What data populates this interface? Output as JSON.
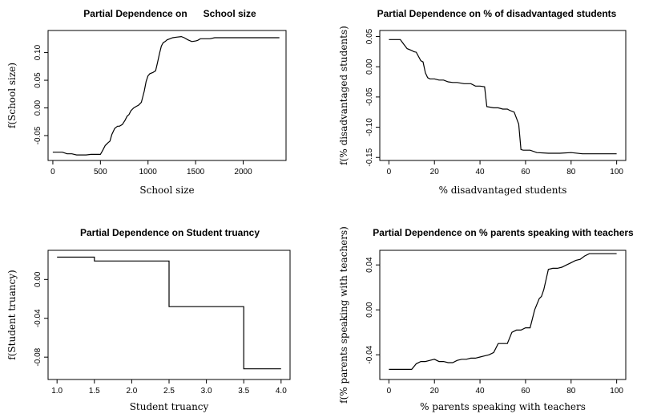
{
  "chart_data": [
    {
      "type": "line",
      "title": "Partial Dependence on      School size",
      "xlabel": "School size",
      "ylabel": "f(School size)",
      "xlim": [
        -50,
        2450
      ],
      "ylim": [
        -0.095,
        0.14
      ],
      "xticks": [
        0,
        500,
        1000,
        1500,
        2000
      ],
      "xtick_labels": [
        "0",
        "500",
        "1000",
        "1500",
        "2000"
      ],
      "yticks": [
        -0.05,
        0.0,
        0.05,
        0.1
      ],
      "ytick_labels": [
        "-0.05",
        "0.00",
        "0.05",
        "0.10"
      ],
      "x": [
        0,
        100,
        150,
        200,
        250,
        300,
        350,
        400,
        450,
        500,
        520,
        550,
        580,
        600,
        620,
        650,
        680,
        700,
        730,
        760,
        780,
        800,
        820,
        850,
        880,
        900,
        930,
        960,
        980,
        1000,
        1020,
        1050,
        1080,
        1100,
        1120,
        1140,
        1160,
        1180,
        1200,
        1230,
        1260,
        1300,
        1350,
        1380,
        1420,
        1460,
        1500,
        1520,
        1550,
        1600,
        1650,
        1700,
        1800,
        2000,
        2200,
        2380
      ],
      "y": [
        -0.08,
        -0.08,
        -0.083,
        -0.083,
        -0.085,
        -0.085,
        -0.085,
        -0.084,
        -0.084,
        -0.084,
        -0.078,
        -0.068,
        -0.063,
        -0.06,
        -0.048,
        -0.037,
        -0.033,
        -0.033,
        -0.03,
        -0.022,
        -0.015,
        -0.012,
        -0.005,
        0.0,
        0.003,
        0.005,
        0.01,
        0.03,
        0.048,
        0.058,
        0.062,
        0.064,
        0.067,
        0.082,
        0.098,
        0.112,
        0.118,
        0.12,
        0.123,
        0.125,
        0.127,
        0.128,
        0.129,
        0.127,
        0.123,
        0.12,
        0.121,
        0.122,
        0.125,
        0.125,
        0.125,
        0.127,
        0.127,
        0.127,
        0.127,
        0.127
      ]
    },
    {
      "type": "line",
      "title": "Partial Dependence on % of disadvantaged students",
      "xlabel": "% disadvantaged students",
      "ylabel": "f(% disadvantaged students)",
      "xlim": [
        -4,
        104
      ],
      "ylim": [
        -0.155,
        0.06
      ],
      "xticks": [
        0,
        20,
        40,
        60,
        80,
        100
      ],
      "xtick_labels": [
        "0",
        "20",
        "40",
        "60",
        "80",
        "100"
      ],
      "yticks": [
        -0.15,
        -0.1,
        -0.05,
        0.0,
        0.05
      ],
      "ytick_labels": [
        "-0.15",
        "-0.10",
        "-0.05",
        "0.00",
        "0.05"
      ],
      "x": [
        0,
        5,
        6,
        8,
        10,
        11,
        12,
        14,
        15,
        16,
        17,
        18,
        20,
        22,
        24,
        26,
        28,
        30,
        33,
        36,
        38,
        40,
        42,
        43,
        46,
        48,
        50,
        52,
        53,
        55,
        56,
        57,
        58,
        59,
        62,
        65,
        70,
        75,
        80,
        85,
        90,
        100
      ],
      "y": [
        0.045,
        0.045,
        0.04,
        0.03,
        0.027,
        0.025,
        0.024,
        0.01,
        0.008,
        -0.01,
        -0.018,
        -0.02,
        -0.02,
        -0.022,
        -0.022,
        -0.025,
        -0.026,
        -0.026,
        -0.028,
        -0.028,
        -0.032,
        -0.032,
        -0.033,
        -0.066,
        -0.068,
        -0.068,
        -0.07,
        -0.07,
        -0.072,
        -0.075,
        -0.085,
        -0.095,
        -0.137,
        -0.138,
        -0.138,
        -0.142,
        -0.143,
        -0.143,
        -0.142,
        -0.144,
        -0.144,
        -0.144
      ]
    },
    {
      "type": "line",
      "title": "Partial Dependence on Student truancy",
      "xlabel": "Student truancy",
      "ylabel": "f(Student truancy)",
      "xlim": [
        0.88,
        4.12
      ],
      "ylim": [
        -0.103,
        0.03
      ],
      "xticks": [
        1.0,
        1.5,
        2.0,
        2.5,
        3.0,
        3.5,
        4.0
      ],
      "xtick_labels": [
        "1.0",
        "1.5",
        "2.0",
        "2.5",
        "3.0",
        "3.5",
        "4.0"
      ],
      "yticks": [
        -0.08,
        -0.04,
        0.0
      ],
      "ytick_labels": [
        "-0.08",
        "-0.04",
        "0.00"
      ],
      "x": [
        1.0,
        1.5,
        1.5,
        2.5,
        2.5,
        3.5,
        3.5,
        4.0
      ],
      "y": [
        0.023,
        0.023,
        0.019,
        0.019,
        -0.028,
        -0.028,
        -0.092,
        -0.092
      ]
    },
    {
      "type": "line",
      "title": "Partial Dependence on % parents speaking with teachers",
      "xlabel": "% parents speaking with teachers",
      "ylabel": "f(% parents speaking with teachers)",
      "xlim": [
        -4,
        104
      ],
      "ylim": [
        -0.062,
        0.053
      ],
      "xticks": [
        0,
        20,
        40,
        60,
        80,
        100
      ],
      "xtick_labels": [
        "0",
        "20",
        "40",
        "60",
        "80",
        "100"
      ],
      "yticks": [
        -0.04,
        0.0,
        0.04
      ],
      "ytick_labels": [
        "-0.04",
        "0.00",
        "0.04"
      ],
      "x": [
        0,
        10,
        12,
        14,
        16,
        18,
        20,
        22,
        24,
        26,
        28,
        30,
        32,
        34,
        36,
        38,
        40,
        42,
        44,
        46,
        48,
        50,
        52,
        54,
        56,
        58,
        60,
        62,
        64,
        66,
        67,
        68,
        70,
        72,
        74,
        76,
        78,
        80,
        82,
        84,
        86,
        88,
        100
      ],
      "y": [
        -0.053,
        -0.053,
        -0.048,
        -0.046,
        -0.046,
        -0.045,
        -0.044,
        -0.046,
        -0.046,
        -0.047,
        -0.047,
        -0.045,
        -0.044,
        -0.044,
        -0.043,
        -0.043,
        -0.042,
        -0.041,
        -0.04,
        -0.038,
        -0.03,
        -0.03,
        -0.03,
        -0.02,
        -0.018,
        -0.018,
        -0.016,
        -0.016,
        0.0,
        0.01,
        0.012,
        0.018,
        0.036,
        0.037,
        0.037,
        0.038,
        0.04,
        0.042,
        0.044,
        0.045,
        0.048,
        0.05,
        0.05
      ]
    }
  ]
}
